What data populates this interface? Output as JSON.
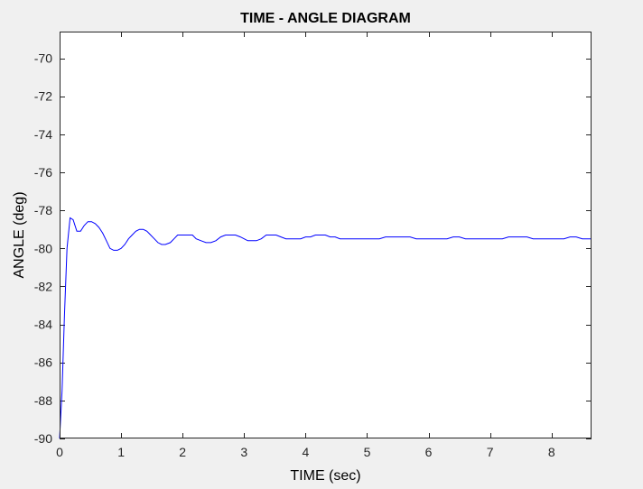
{
  "chart_data": {
    "type": "line",
    "title": "TIME - ANGLE DIAGRAM",
    "xlabel": "TIME (sec)",
    "ylabel": "ANGLE (deg)",
    "xlim": [
      0,
      8.65
    ],
    "ylim": [
      -90,
      -68.6
    ],
    "x_ticks": [
      0,
      1,
      2,
      3,
      4,
      5,
      6,
      7,
      8
    ],
    "y_ticks": [
      -90,
      -88,
      -86,
      -84,
      -82,
      -80,
      -78,
      -76,
      -74,
      -72,
      -70
    ],
    "grid": false,
    "colors": {
      "line": "#0000ff",
      "axes_bg": "#ffffff",
      "figure_bg": "#f0f0f0"
    },
    "series": [
      {
        "x": [
          0,
          0.04,
          0.08,
          0.12,
          0.17,
          0.22,
          0.28,
          0.34,
          0.4,
          0.46,
          0.52,
          0.58,
          0.64,
          0.7,
          0.76,
          0.82,
          0.88,
          0.94,
          1.0,
          1.06,
          1.12,
          1.18,
          1.24,
          1.3,
          1.36,
          1.42,
          1.48,
          1.54,
          1.6,
          1.66,
          1.72,
          1.8,
          1.86,
          1.92,
          1.98,
          2.04,
          2.1,
          2.16,
          2.22,
          2.3,
          2.38,
          2.46,
          2.54,
          2.62,
          2.7,
          2.78,
          2.86,
          2.94,
          3.0,
          3.06,
          3.12,
          3.2,
          3.28,
          3.36,
          3.44,
          3.52,
          3.6,
          3.68,
          3.76,
          3.84,
          3.92,
          4.0,
          4.08,
          4.16,
          4.24,
          4.32,
          4.4,
          4.48,
          4.56,
          4.64,
          4.72,
          4.8,
          4.88,
          4.96,
          5.04,
          5.12,
          5.2,
          5.3,
          5.4,
          5.5,
          5.6,
          5.7,
          5.8,
          5.9,
          6.0,
          6.1,
          6.2,
          6.3,
          6.4,
          6.5,
          6.6,
          6.7,
          6.8,
          6.9,
          7.0,
          7.1,
          7.2,
          7.3,
          7.4,
          7.5,
          7.6,
          7.7,
          7.8,
          7.9,
          8.0,
          8.1,
          8.2,
          8.3,
          8.4,
          8.5,
          8.65
        ],
        "y": [
          -90.0,
          -87.5,
          -83.5,
          -80.0,
          -78.4,
          -78.5,
          -79.1,
          -79.1,
          -78.8,
          -78.6,
          -78.6,
          -78.7,
          -78.9,
          -79.2,
          -79.6,
          -80.0,
          -80.1,
          -80.1,
          -80.0,
          -79.8,
          -79.5,
          -79.3,
          -79.1,
          -79.0,
          -79.0,
          -79.1,
          -79.3,
          -79.5,
          -79.7,
          -79.8,
          -79.8,
          -79.7,
          -79.5,
          -79.3,
          -79.3,
          -79.3,
          -79.3,
          -79.3,
          -79.5,
          -79.6,
          -79.7,
          -79.7,
          -79.6,
          -79.4,
          -79.3,
          -79.3,
          -79.3,
          -79.4,
          -79.5,
          -79.6,
          -79.6,
          -79.6,
          -79.5,
          -79.3,
          -79.3,
          -79.3,
          -79.4,
          -79.5,
          -79.5,
          -79.5,
          -79.5,
          -79.4,
          -79.4,
          -79.3,
          -79.3,
          -79.3,
          -79.4,
          -79.4,
          -79.5,
          -79.5,
          -79.5,
          -79.5,
          -79.5,
          -79.5,
          -79.5,
          -79.5,
          -79.5,
          -79.4,
          -79.4,
          -79.4,
          -79.4,
          -79.4,
          -79.5,
          -79.5,
          -79.5,
          -79.5,
          -79.5,
          -79.5,
          -79.4,
          -79.4,
          -79.5,
          -79.5,
          -79.5,
          -79.5,
          -79.5,
          -79.5,
          -79.5,
          -79.4,
          -79.4,
          -79.4,
          -79.4,
          -79.5,
          -79.5,
          -79.5,
          -79.5,
          -79.5,
          -79.5,
          -79.4,
          -79.4,
          -79.5,
          -79.5
        ]
      }
    ]
  }
}
